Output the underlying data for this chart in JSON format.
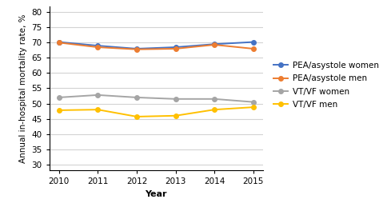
{
  "years": [
    2010,
    2011,
    2012,
    2013,
    2014,
    2015
  ],
  "pea_women": [
    70.2,
    69.0,
    68.0,
    68.5,
    69.5,
    70.2
  ],
  "pea_men": [
    70.0,
    68.5,
    67.8,
    68.0,
    69.3,
    68.0
  ],
  "vtvf_women": [
    52.0,
    52.8,
    52.0,
    51.5,
    51.5,
    50.5
  ],
  "vtvf_men": [
    47.8,
    48.0,
    45.7,
    46.0,
    48.0,
    48.8
  ],
  "pea_women_color": "#4472C4",
  "pea_men_color": "#ED7D31",
  "vtvf_women_color": "#A5A5A5",
  "vtvf_men_color": "#FFC000",
  "ylabel": "Annual in-hospital mortality rate, %",
  "xlabel": "Year",
  "ylim": [
    28,
    82
  ],
  "yticks": [
    30,
    35,
    40,
    45,
    50,
    55,
    60,
    65,
    70,
    75,
    80
  ],
  "legend_labels": [
    "PEA/asystole women",
    "PEA/asystole men",
    "VT/VF women",
    "VT/VF men"
  ],
  "marker": "o",
  "markersize": 4,
  "linewidth": 1.4,
  "grid_color": "#D3D3D3",
  "grid_linewidth": 0.8,
  "tick_fontsize": 7.5,
  "label_fontsize": 8,
  "legend_fontsize": 7.5
}
